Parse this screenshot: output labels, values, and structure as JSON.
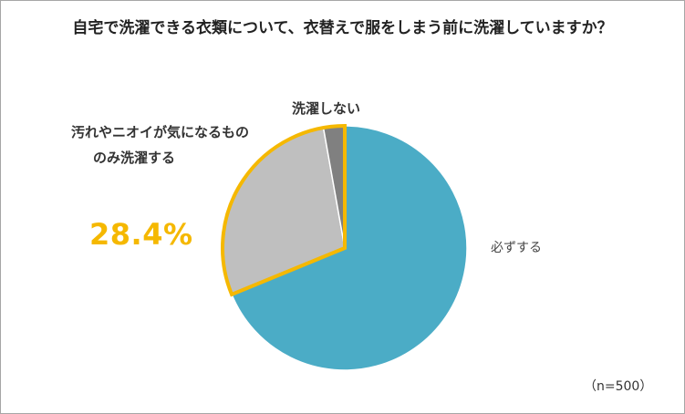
{
  "chart_data": {
    "type": "pie",
    "title": "自宅で洗濯できる衣類について、衣替えで服をしまう前に洗濯していますか？",
    "categories": [
      "必ずする",
      "汚れやニオイが気になるもののみ洗濯する",
      "洗濯しない"
    ],
    "values": [
      68.8,
      28.4,
      2.8
    ],
    "unit": "%",
    "highlight_label": "28.4%",
    "note": "（n=500）",
    "colors": [
      "#4bacc6",
      "#bfbfbf",
      "#808080"
    ],
    "highlight_border": "#f5b800"
  },
  "labels": {
    "must": "必ずする",
    "only_if_line1": "汚れやニオイが気になるもの",
    "only_if_line2": "のみ洗濯する",
    "no_wash": "洗濯しない"
  }
}
